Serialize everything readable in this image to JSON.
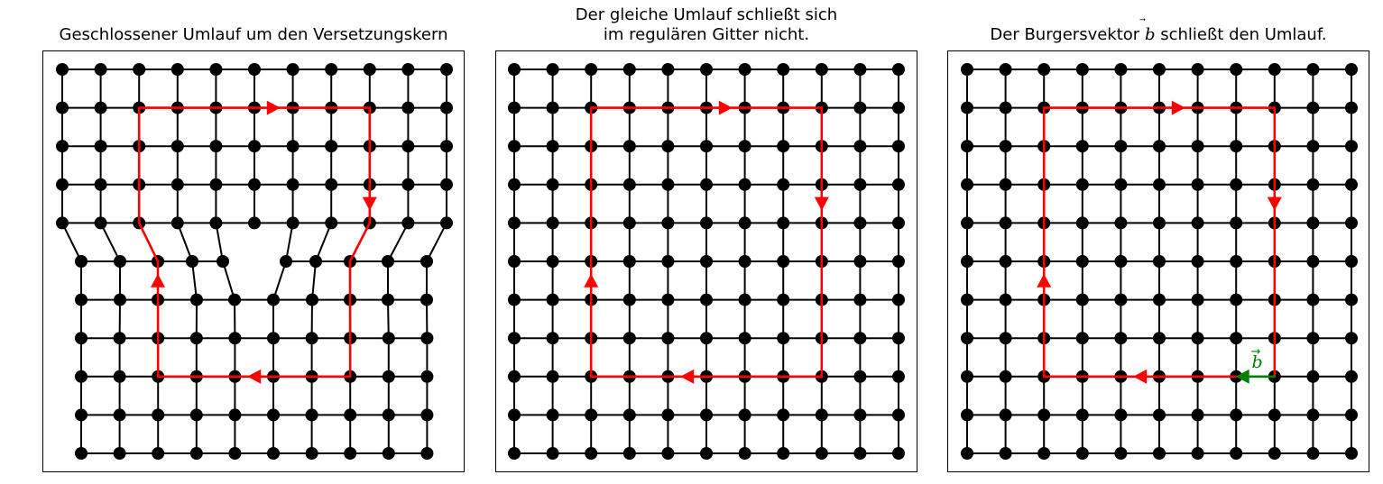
{
  "panels": [
    {
      "id": "edge-dislocation",
      "title_lines": [
        "Geschlossener Umlauf um den Versetzungskern"
      ],
      "lattice": "dislocation"
    },
    {
      "id": "regular-lattice",
      "title_lines": [
        "Der gleiche Umlauf schließt sich",
        "im regulären Gitter nicht."
      ],
      "lattice": "regular"
    },
    {
      "id": "burgers-vector",
      "title_lines": [
        "Der Burgersvektor",
        "schließt den Umlauf."
      ],
      "title_symbol": "b",
      "lattice": "regular"
    }
  ],
  "burgers_label": "b",
  "colors": {
    "lattice": "#000000",
    "circuit": "#ff0000",
    "burgers": "#008000"
  }
}
